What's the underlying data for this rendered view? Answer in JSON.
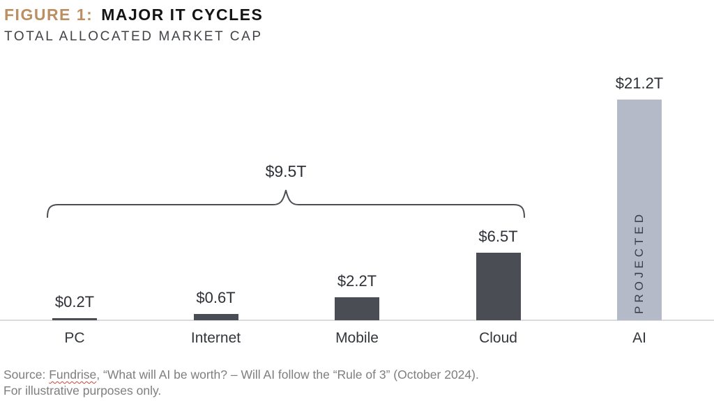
{
  "header": {
    "figure_label": "FIGURE 1:",
    "title": "MAJOR IT CYCLES",
    "subtitle": "TOTAL ALLOCATED MARKET CAP"
  },
  "chart_data": {
    "type": "bar",
    "title": "FIGURE 1: MAJOR IT CYCLES",
    "subtitle": "TOTAL ALLOCATED MARKET CAP",
    "unit": "USD trillions",
    "categories": [
      "PC",
      "Internet",
      "Mobile",
      "Cloud",
      "AI"
    ],
    "values": [
      0.2,
      0.6,
      2.2,
      6.5,
      21.2
    ],
    "value_labels": [
      "$0.2T",
      "$0.6T",
      "$2.2T",
      "$6.5T",
      "$21.2T"
    ],
    "ylim": [
      0,
      22
    ],
    "grid": false,
    "legend": false,
    "annotations": {
      "brace": {
        "label": "$9.5T",
        "from_category": "PC",
        "to_category": "Cloud"
      },
      "ai_bar_text": "PROJECTED"
    },
    "colors": {
      "historical_bar": "#4a4e54",
      "projected_bar": "#b5bac9"
    }
  },
  "footer": {
    "source_prefix": "Source: ",
    "source_word": "Fundrise",
    "source_rest": ", “What will AI be worth? – Will AI follow the “Rule of 3” (October 2024).",
    "line2": "For illustrative purposes only."
  },
  "colors": {
    "accent": "#bc8e61",
    "title_text": "#141414",
    "subtitle_text": "#3f4246",
    "label_text": "#2d3036",
    "baseline": "#d9dadb",
    "brace_stroke": "#4b4e54",
    "footer_text": "#7e7e7e",
    "misspell_underline": "#cc4437"
  }
}
